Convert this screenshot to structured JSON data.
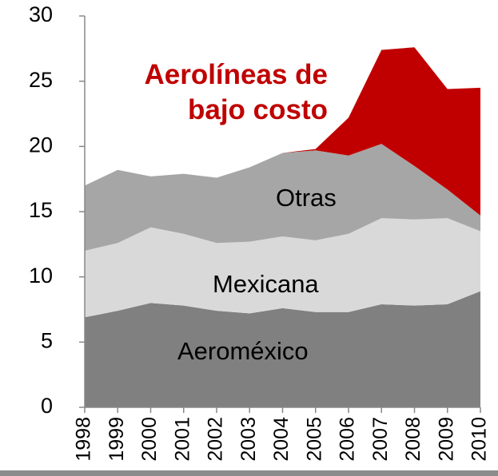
{
  "chart_data": {
    "type": "area",
    "stacked": true,
    "categories": [
      "1998",
      "1999",
      "2000",
      "2001",
      "2002",
      "2003",
      "2004",
      "2005",
      "2006",
      "2007",
      "2008",
      "2009",
      "2010"
    ],
    "series": [
      {
        "name": "Aeroméxico",
        "color": "#808080",
        "values": [
          6.9,
          7.4,
          8.0,
          7.8,
          7.4,
          7.2,
          7.6,
          7.3,
          7.3,
          7.9,
          7.8,
          7.9,
          8.9
        ]
      },
      {
        "name": "Mexicana",
        "color": "#d9d9d9",
        "values": [
          5.1,
          5.2,
          5.8,
          5.5,
          5.2,
          5.5,
          5.5,
          5.5,
          6.0,
          6.6,
          6.6,
          6.6,
          4.6
        ]
      },
      {
        "name": "Otras",
        "color": "#a6a6a6",
        "values": [
          5.0,
          5.6,
          3.9,
          4.6,
          5.0,
          5.7,
          6.4,
          6.9,
          6.0,
          5.7,
          4.1,
          2.2,
          1.2
        ]
      },
      {
        "name": "Aerolíneas de bajo costo",
        "color": "#c00000",
        "values": [
          0,
          0,
          0,
          0,
          0,
          0,
          0,
          0.1,
          2.9,
          7.2,
          9.1,
          7.7,
          9.8
        ]
      }
    ],
    "ylim": [
      0,
      30
    ],
    "yticks": [
      0,
      5,
      10,
      15,
      20,
      25,
      30
    ],
    "grid": false
  }
}
